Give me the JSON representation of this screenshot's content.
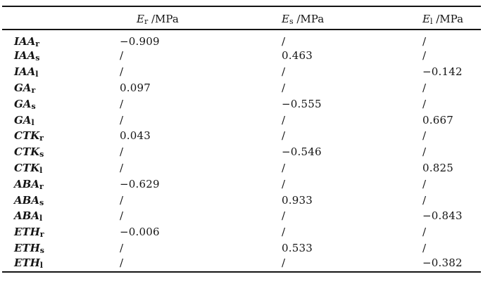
{
  "table": {
    "colors": {
      "background": "#ffffff",
      "text": "#141414",
      "rule": "#141414"
    },
    "headers": [
      {
        "symbol": "E",
        "sub": "r",
        "unit": " /MPa"
      },
      {
        "symbol": "E",
        "sub": "s",
        "unit": " /MPa"
      },
      {
        "symbol": "E",
        "sub": "l",
        "unit": " /MPa"
      }
    ],
    "empty_cell": "",
    "rows": [
      {
        "label": "IAA",
        "sub": "r",
        "cells": [
          "−0.909",
          "/",
          "/"
        ]
      },
      {
        "label": "IAA",
        "sub": "s",
        "cells": [
          "/",
          "0.463",
          "/"
        ]
      },
      {
        "label": "IAA",
        "sub": "l",
        "cells": [
          "/",
          "/",
          "−0.142"
        ]
      },
      {
        "label": "GA",
        "sub": "r",
        "cells": [
          "0.097",
          "/",
          "/"
        ]
      },
      {
        "label": "GA",
        "sub": "s",
        "cells": [
          "/",
          "−0.555",
          "/"
        ]
      },
      {
        "label": "GA",
        "sub": "l",
        "cells": [
          "/",
          "/",
          "0.667"
        ]
      },
      {
        "label": "CTK",
        "sub": "r",
        "cells": [
          "0.043",
          "/",
          "/"
        ]
      },
      {
        "label": "CTK",
        "sub": "s",
        "cells": [
          "/",
          "−0.546",
          "/"
        ]
      },
      {
        "label": "CTK",
        "sub": "l",
        "cells": [
          "/",
          "/",
          "0.825"
        ]
      },
      {
        "label": "ABA",
        "sub": "r",
        "cells": [
          "−0.629",
          "/",
          "/"
        ]
      },
      {
        "label": "ABA",
        "sub": "s",
        "cells": [
          "/",
          "0.933",
          "/"
        ]
      },
      {
        "label": "ABA",
        "sub": "l",
        "cells": [
          "/",
          "/",
          "−0.843"
        ]
      },
      {
        "label": "ETH",
        "sub": "r",
        "cells": [
          "−0.006",
          "/",
          "/"
        ]
      },
      {
        "label": "ETH",
        "sub": "s",
        "cells": [
          "/",
          "0.533",
          "/"
        ]
      },
      {
        "label": "ETH",
        "sub": "l",
        "cells": [
          "/",
          "/",
          "−0.382"
        ]
      }
    ]
  }
}
